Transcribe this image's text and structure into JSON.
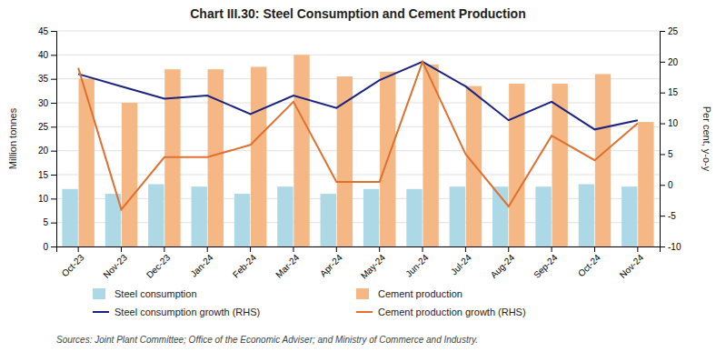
{
  "chart_data": {
    "type": "bar",
    "title": "Chart III.30: Steel Consumption and Cement Production",
    "categories": [
      "Oct-23",
      "Nov-23",
      "Dec-23",
      "Jan-24",
      "Feb-24",
      "Mar-24",
      "Apr-24",
      "May-24",
      "Jun-24",
      "Jul-24",
      "Aug-24",
      "Sep-24",
      "Oct-24",
      "Nov-24"
    ],
    "series": [
      {
        "name": "Steel consumption",
        "type": "bar",
        "color": "#add8e6",
        "values": [
          12.0,
          11.0,
          13.0,
          12.5,
          11.0,
          12.5,
          11.0,
          12.0,
          12.0,
          12.5,
          12.5,
          12.5,
          13.0,
          12.5
        ]
      },
      {
        "name": "Cement production",
        "type": "bar",
        "color": "#f5b885",
        "values": [
          35.0,
          30.0,
          37.0,
          37.0,
          37.5,
          40.0,
          35.5,
          36.5,
          38.0,
          33.5,
          34.0,
          34.0,
          36.0,
          26.0
        ]
      },
      {
        "name": "Steel consumption growth (RHS)",
        "type": "line",
        "axis": "y2",
        "color": "#1a237e",
        "values": [
          18.0,
          16.0,
          14.0,
          14.5,
          11.5,
          14.5,
          12.5,
          17.0,
          20.0,
          16.0,
          10.5,
          13.5,
          9.0,
          10.5
        ]
      },
      {
        "name": "Cement production growth (RHS)",
        "type": "line",
        "axis": "y2",
        "color": "#e07030",
        "values": [
          19.0,
          -4.0,
          4.5,
          4.5,
          6.5,
          13.5,
          0.5,
          0.5,
          20.0,
          5.0,
          -3.5,
          8.0,
          4.0,
          10.0
        ]
      }
    ],
    "ylim": [
      0,
      45
    ],
    "yticks": [
      0,
      5,
      10,
      15,
      20,
      25,
      30,
      35,
      40,
      45
    ],
    "y2lim": [
      -10,
      25
    ],
    "y2ticks": [
      -10,
      -5,
      0,
      5,
      10,
      15,
      20,
      25
    ],
    "ylabel": "Million tonnes",
    "y2label": "Per cent, y-o-y",
    "source": "Sources: Joint Plant Committee; Office of the Economic Adviser; and Ministry of Commerce and Industry.",
    "grid": true,
    "legend": "bottom"
  }
}
